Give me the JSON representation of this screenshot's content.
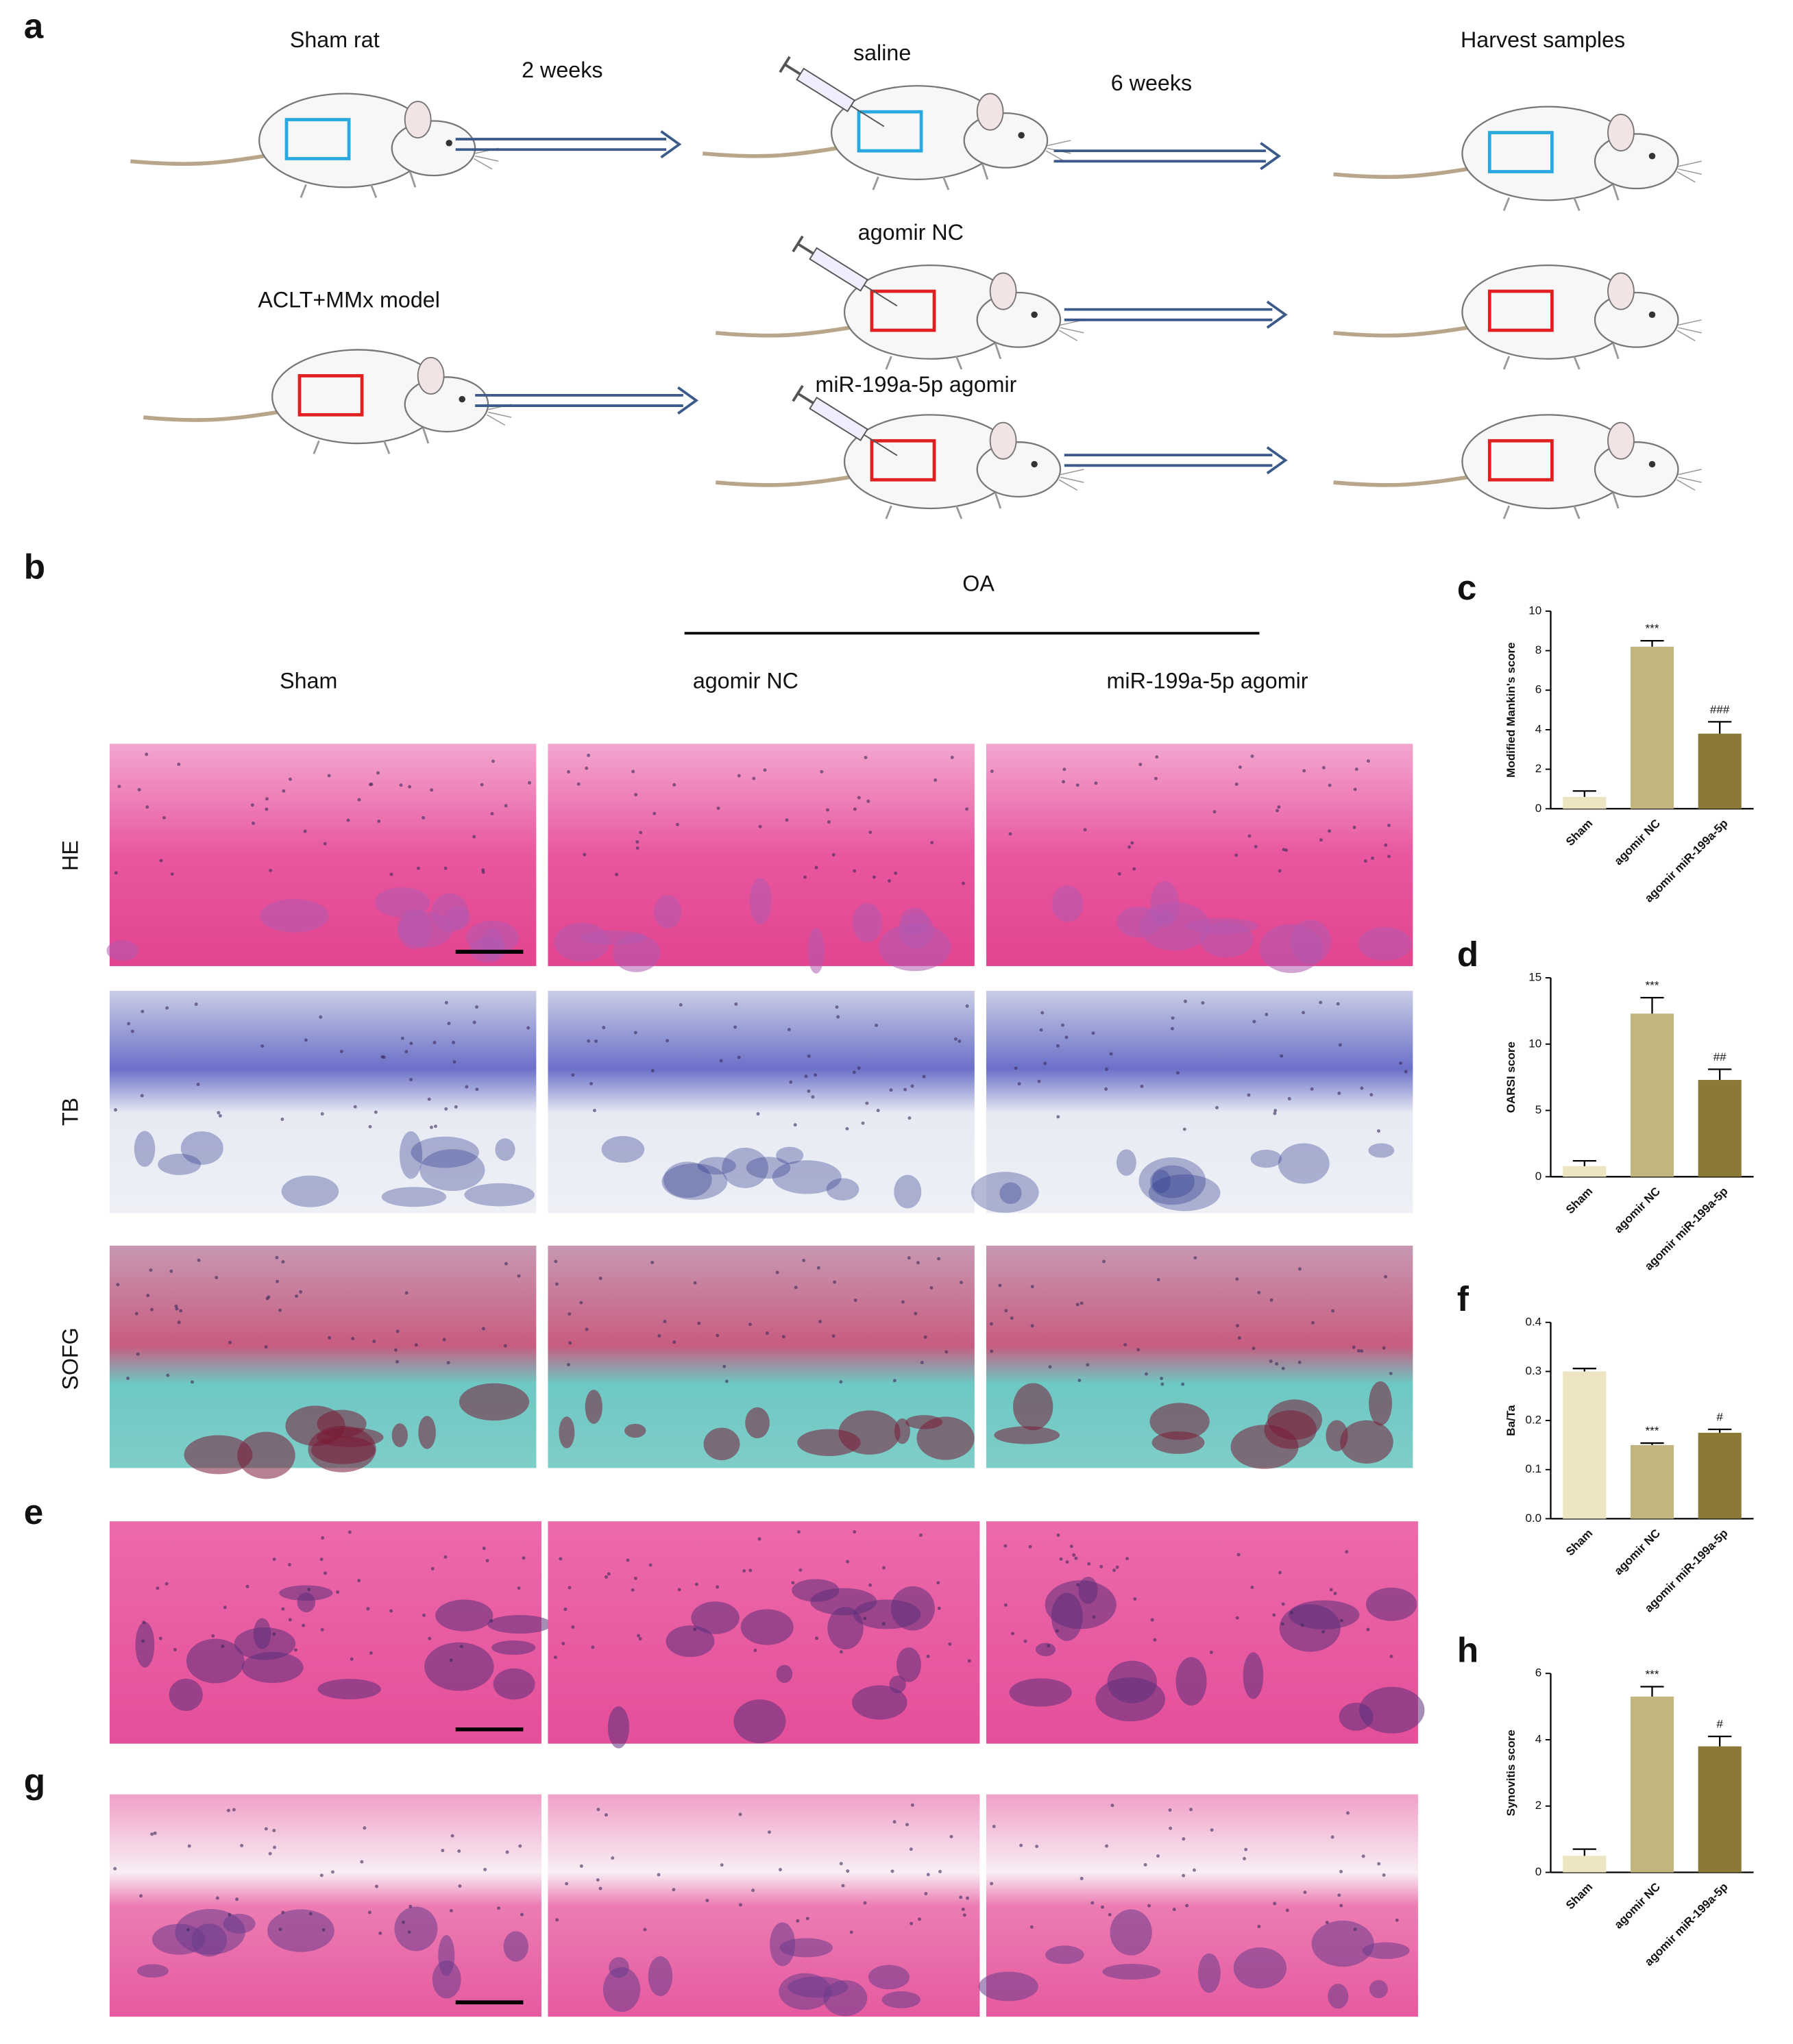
{
  "panel_labels": [
    "a",
    "b",
    "e",
    "g"
  ],
  "schematic": {
    "texts": [
      "Sham rat",
      "2 weeks",
      "saline",
      "6 weeks",
      "Harvest samples",
      "agomir NC",
      "ACLT+MMx model",
      "miR-199a-5p agomir"
    ]
  },
  "histology": {
    "group_label": "OA",
    "columns": [
      "Sham",
      "agomir NC",
      "miR-199a-5p agomir"
    ],
    "rows": [
      "HE",
      "TB",
      "SOFG"
    ]
  },
  "chart_data": [
    {
      "type": "bar",
      "panel": "c",
      "ylabel": "Modified Mankin's score",
      "categories": [
        "Sham",
        "agomir NC",
        "agomir miR-199a-5p"
      ],
      "values": [
        0.6,
        8.2,
        3.8
      ],
      "errors": [
        0.3,
        0.3,
        0.6
      ],
      "significance": [
        null,
        "***",
        "###"
      ],
      "colors": [
        "#ede4c2",
        "#c3b57f",
        "#8b7936"
      ],
      "ylim": [
        0,
        10
      ],
      "yticks": [
        0,
        2,
        4,
        6,
        8,
        10
      ]
    },
    {
      "type": "bar",
      "panel": "d",
      "ylabel": "OARSI score",
      "categories": [
        "Sham",
        "agomir NC",
        "agomir miR-199a-5p"
      ],
      "values": [
        0.8,
        12.3,
        7.3
      ],
      "errors": [
        0.4,
        1.2,
        0.8
      ],
      "significance": [
        null,
        "***",
        "##"
      ],
      "colors": [
        "#ede4c2",
        "#c3b57f",
        "#8b7936"
      ],
      "ylim": [
        0,
        15
      ],
      "yticks": [
        0,
        5,
        10,
        15
      ]
    },
    {
      "type": "bar",
      "panel": "f",
      "ylabel": "Ba/Ta",
      "categories": [
        "Sham",
        "agomir NC",
        "agomir miR-199a-5p"
      ],
      "values": [
        0.3,
        0.15,
        0.175
      ],
      "errors": [
        0.006,
        0.004,
        0.007
      ],
      "significance": [
        null,
        "***",
        "#"
      ],
      "colors": [
        "#ede4c2",
        "#c3b57f",
        "#8b7936"
      ],
      "ylim": [
        0,
        0.4
      ],
      "yticks": [
        {
          "value": 0,
          "label": "0.0"
        },
        0.1,
        0.2,
        0.3,
        0.4
      ]
    },
    {
      "type": "bar",
      "panel": "h",
      "ylabel": "Synovitis score",
      "categories": [
        "Sham",
        "agomir NC",
        "agomir miR-199a-5p"
      ],
      "values": [
        0.5,
        5.3,
        3.8
      ],
      "errors": [
        0.2,
        0.3,
        0.3
      ],
      "significance": [
        null,
        "***",
        "#"
      ],
      "colors": [
        "#ede4c2",
        "#c3b57f",
        "#8b7936"
      ],
      "ylim": [
        0,
        6
      ],
      "yticks": [
        0,
        2,
        4,
        6
      ]
    }
  ]
}
